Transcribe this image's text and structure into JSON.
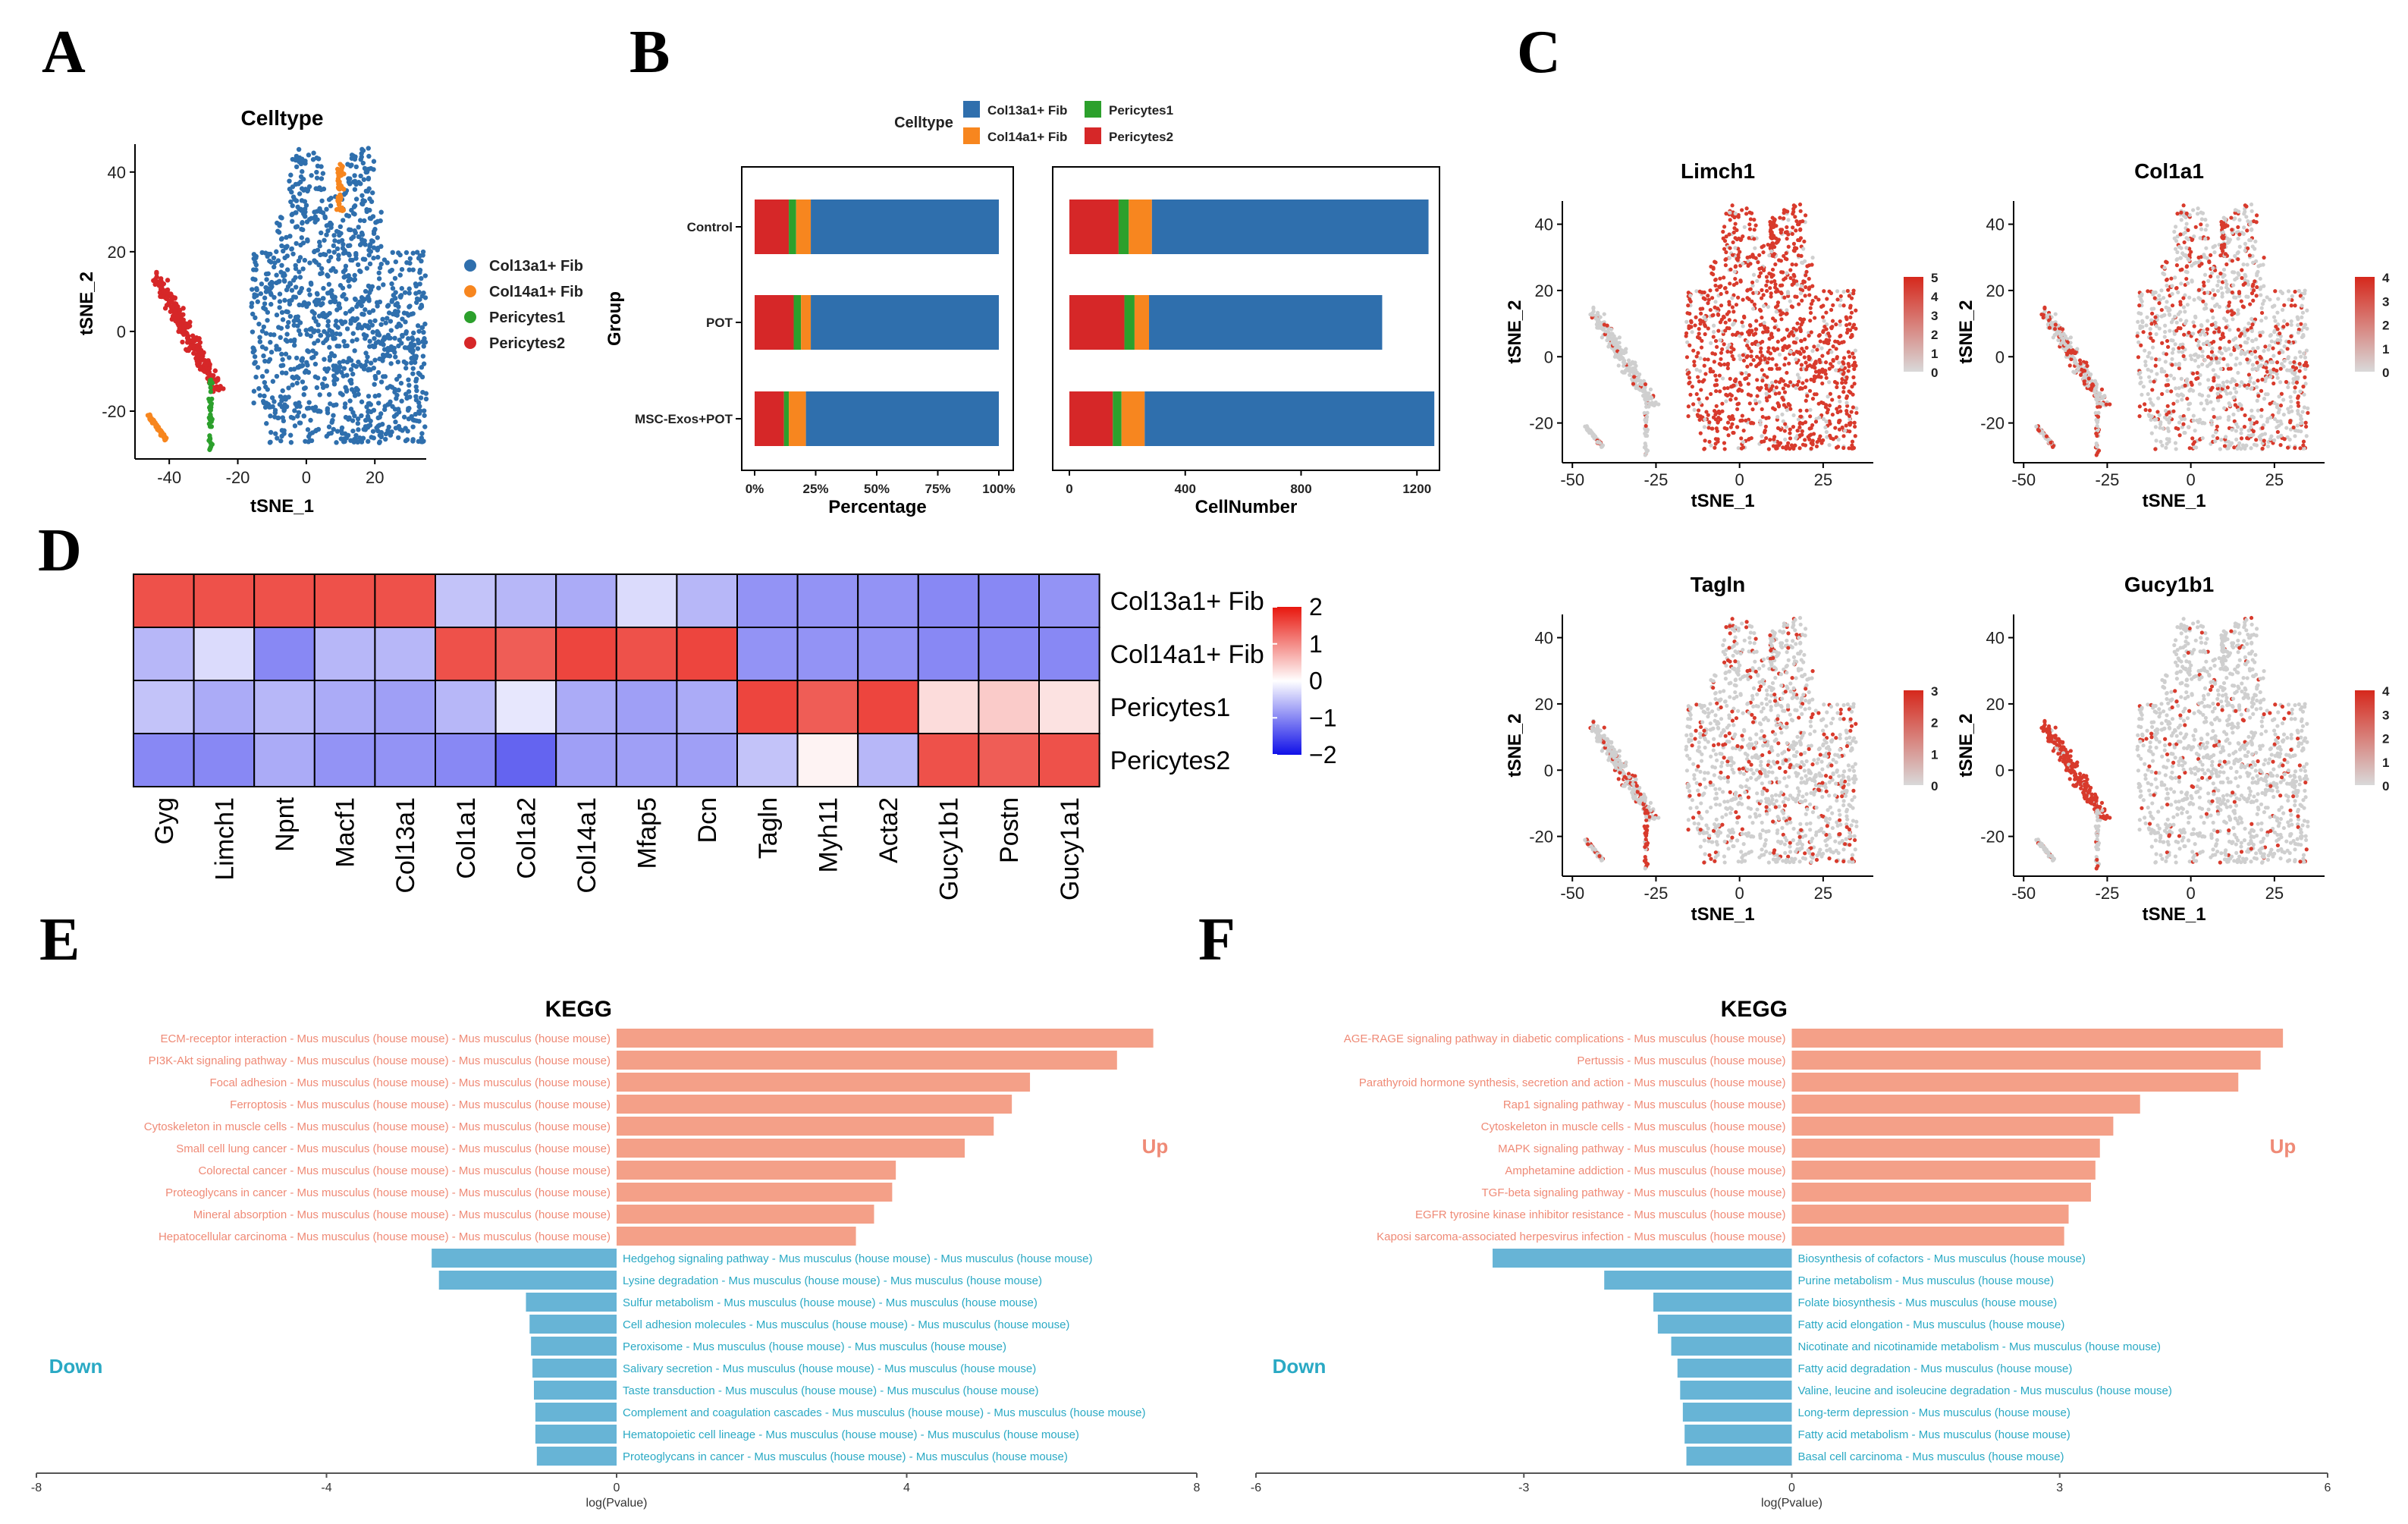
{
  "panel_letters": [
    "A",
    "B",
    "C",
    "D",
    "E",
    "F"
  ],
  "colors": {
    "col13a1": "#2f6fad",
    "col14a1": "#f7861f",
    "peri1": "#2ca02c",
    "peri2": "#d62728",
    "up_bar": "#f4a088",
    "down_bar": "#67b4d6",
    "up_text": "#ef8a76",
    "down_text": "#2aa9c4"
  },
  "chart_data": [
    {
      "id": "A",
      "type": "scatter",
      "title": "Celltype",
      "xlabel": "tSNE_1",
      "ylabel": "tSNE_2",
      "xlim": [
        -50,
        35
      ],
      "ylim": [
        -32,
        47
      ],
      "xticks": [
        -40,
        -20,
        0,
        20
      ],
      "yticks": [
        -20,
        0,
        20,
        40
      ],
      "legend": [
        {
          "name": "Col13a1+ Fib",
          "color": "#2f6fad"
        },
        {
          "name": "Col14a1+ Fib",
          "color": "#f7861f"
        },
        {
          "name": "Pericytes1",
          "color": "#2ca02c"
        },
        {
          "name": "Pericytes2",
          "color": "#d62728"
        }
      ]
    },
    {
      "id": "B1",
      "type": "bar",
      "orientation": "horizontal",
      "stacked": true,
      "legend_title": "Celltype",
      "legend": [
        "Col13a1+ Fib",
        "Col14a1+ Fib",
        "Pericytes1",
        "Pericytes2"
      ],
      "ylabel": "Group",
      "xlabel": "Percentage",
      "categories": [
        "Control",
        "POT",
        "MSC-Exos+POT"
      ],
      "xlim": [
        0,
        100
      ],
      "xticks": [
        "0%",
        "25%",
        "50%",
        "75%",
        "100%"
      ],
      "series": [
        {
          "name": "Pericytes2",
          "values": [
            14,
            16,
            12
          ]
        },
        {
          "name": "Pericytes1",
          "values": [
            3,
            3,
            2
          ]
        },
        {
          "name": "Col14a1+ Fib",
          "values": [
            6,
            4,
            7
          ]
        },
        {
          "name": "Col13a1+ Fib",
          "values": [
            77,
            77,
            79
          ]
        }
      ]
    },
    {
      "id": "B2",
      "type": "bar",
      "orientation": "horizontal",
      "stacked": true,
      "xlabel": "CellNumber",
      "categories": [
        "Control",
        "POT",
        "MSC-Exos+POT"
      ],
      "xlim": [
        0,
        1270
      ],
      "xticks": [
        0,
        400,
        800,
        1200
      ],
      "series": [
        {
          "name": "Pericytes2",
          "values": [
            170,
            190,
            150
          ]
        },
        {
          "name": "Pericytes1",
          "values": [
            35,
            35,
            30
          ]
        },
        {
          "name": "Col14a1+ Fib",
          "values": [
            80,
            50,
            80
          ]
        },
        {
          "name": "Col13a1+ Fib",
          "values": [
            955,
            805,
            1000
          ]
        }
      ]
    },
    {
      "id": "C1",
      "type": "scatter",
      "title": "Limch1",
      "xlabel": "tSNE_1",
      "ylabel": "tSNE_2",
      "xticks": [
        -50,
        -25,
        0,
        25
      ],
      "yticks": [
        -20,
        0,
        20,
        40
      ],
      "scale_ticks": [
        "5",
        "4",
        "3",
        "2",
        "1",
        "0"
      ],
      "scale_max": 5
    },
    {
      "id": "C2",
      "type": "scatter",
      "title": "Col1a1",
      "xlabel": "tSNE_1",
      "ylabel": "tSNE_2",
      "xticks": [
        -50,
        -25,
        0,
        25
      ],
      "yticks": [
        -20,
        0,
        20,
        40
      ],
      "scale_ticks": [
        "4",
        "3",
        "2",
        "1",
        "0"
      ],
      "scale_max": 4
    },
    {
      "id": "C3",
      "type": "scatter",
      "title": "Tagln",
      "xlabel": "tSNE_1",
      "ylabel": "tSNE_2",
      "xticks": [
        -50,
        -25,
        0,
        25
      ],
      "yticks": [
        -20,
        0,
        20,
        40
      ],
      "scale_ticks": [
        "3",
        "2",
        "1",
        "0"
      ],
      "scale_max": 3
    },
    {
      "id": "C4",
      "type": "scatter",
      "title": "Gucy1b1",
      "xlabel": "tSNE_1",
      "ylabel": "tSNE_2",
      "xticks": [
        -50,
        -25,
        0,
        25
      ],
      "yticks": [
        -20,
        0,
        20,
        40
      ],
      "scale_ticks": [
        "4",
        "3",
        "2",
        "1",
        "0"
      ],
      "scale_max": 4
    },
    {
      "id": "D",
      "type": "heatmap",
      "rows": [
        "Col13a1+ Fib",
        "Col14a1+ Fib",
        "Pericytes1",
        "Pericytes2"
      ],
      "columns": [
        "Gyg",
        "Limch1",
        "Npnt",
        "Macf1",
        "Col13a1",
        "Col1a1",
        "Col1a2",
        "Col14a1",
        "Mfap5",
        "Dcn",
        "Tagln",
        "Myh11",
        "Acta2",
        "Gucy1b1",
        "Postn",
        "Gucy1a1"
      ],
      "values": [
        [
          1.5,
          1.5,
          1.5,
          1.5,
          1.5,
          -0.5,
          -0.6,
          -0.7,
          -0.3,
          -0.6,
          -0.9,
          -0.9,
          -0.9,
          -1.0,
          -1.0,
          -0.9
        ],
        [
          -0.6,
          -0.3,
          -1.0,
          -0.6,
          -0.6,
          1.5,
          1.4,
          1.6,
          1.5,
          1.6,
          -0.9,
          -0.9,
          -0.9,
          -1.0,
          -1.0,
          -1.0
        ],
        [
          -0.5,
          -0.7,
          -0.6,
          -0.7,
          -0.8,
          -0.6,
          -0.2,
          -0.7,
          -0.8,
          -0.7,
          1.6,
          1.4,
          1.6,
          0.3,
          0.45,
          0.25
        ],
        [
          -1.0,
          -1.0,
          -0.7,
          -0.9,
          -0.9,
          -1.0,
          -1.3,
          -0.8,
          -0.8,
          -0.8,
          -0.5,
          0.1,
          -0.6,
          1.5,
          1.4,
          1.5
        ]
      ],
      "scale_ticks": [
        "2",
        "1",
        "0",
        "−1",
        "−2"
      ],
      "vmin": -2,
      "vmax": 2
    },
    {
      "id": "E",
      "type": "bar",
      "orientation": "horizontal",
      "title": "KEGG",
      "xlabel": "log(Pvalue)",
      "xlim": [
        -8,
        8
      ],
      "xticks": [
        -8,
        -4,
        0,
        4,
        8
      ],
      "up_label": "Up",
      "down_label": "Down",
      "up": [
        {
          "term": "ECM-receptor interaction - Mus musculus (house mouse) - Mus musculus (house mouse)",
          "value": 7.4
        },
        {
          "term": "PI3K-Akt signaling pathway - Mus musculus (house mouse) - Mus musculus (house mouse)",
          "value": 6.9
        },
        {
          "term": "Focal adhesion - Mus musculus (house mouse) - Mus musculus (house mouse)",
          "value": 5.7
        },
        {
          "term": "Ferroptosis - Mus musculus (house mouse) - Mus musculus (house mouse)",
          "value": 5.45
        },
        {
          "term": "Cytoskeleton in muscle cells - Mus musculus (house mouse) - Mus musculus (house mouse)",
          "value": 5.2
        },
        {
          "term": "Small cell lung cancer - Mus musculus (house mouse) - Mus musculus (house mouse)",
          "value": 4.8
        },
        {
          "term": "Colorectal cancer - Mus musculus (house mouse) - Mus musculus (house mouse)",
          "value": 3.85
        },
        {
          "term": "Proteoglycans in cancer - Mus musculus (house mouse) - Mus musculus (house mouse)",
          "value": 3.8
        },
        {
          "term": "Mineral absorption - Mus musculus (house mouse) - Mus musculus (house mouse)",
          "value": 3.55
        },
        {
          "term": "Hepatocellular carcinoma - Mus musculus (house mouse) - Mus musculus (house mouse)",
          "value": 3.3
        }
      ],
      "down": [
        {
          "term": "Hedgehog signaling pathway - Mus musculus (house mouse) - Mus musculus (house mouse)",
          "value": -2.55
        },
        {
          "term": "Lysine degradation - Mus musculus (house mouse) - Mus musculus (house mouse)",
          "value": -2.45
        },
        {
          "term": "Sulfur metabolism - Mus musculus (house mouse) - Mus musculus (house mouse)",
          "value": -1.25
        },
        {
          "term": "Cell adhesion molecules - Mus musculus (house mouse) - Mus musculus (house mouse)",
          "value": -1.2
        },
        {
          "term": "Peroxisome - Mus musculus (house mouse) - Mus musculus (house mouse)",
          "value": -1.18
        },
        {
          "term": "Salivary secretion - Mus musculus (house mouse) - Mus musculus (house mouse)",
          "value": -1.16
        },
        {
          "term": "Taste transduction - Mus musculus (house mouse) - Mus musculus (house mouse)",
          "value": -1.14
        },
        {
          "term": "Complement and coagulation cascades - Mus musculus (house mouse) - Mus musculus (house mouse)",
          "value": -1.12
        },
        {
          "term": "Hematopoietic cell lineage - Mus musculus (house mouse) - Mus musculus (house mouse)",
          "value": -1.12
        },
        {
          "term": "Proteoglycans in cancer - Mus musculus (house mouse) - Mus musculus (house mouse)",
          "value": -1.1
        }
      ]
    },
    {
      "id": "F",
      "type": "bar",
      "orientation": "horizontal",
      "title": "KEGG",
      "xlabel": "log(Pvalue)",
      "xlim": [
        -6,
        6
      ],
      "xticks": [
        -6,
        -3,
        0,
        3,
        6
      ],
      "up_label": "Up",
      "down_label": "Down",
      "up": [
        {
          "term": "AGE-RAGE signaling pathway in diabetic complications - Mus musculus (house mouse)",
          "value": 5.5
        },
        {
          "term": "Pertussis - Mus musculus (house mouse)",
          "value": 5.25
        },
        {
          "term": "Parathyroid hormone synthesis, secretion and action - Mus musculus (house mouse)",
          "value": 5.0
        },
        {
          "term": "Rap1 signaling pathway - Mus musculus (house mouse)",
          "value": 3.9
        },
        {
          "term": "Cytoskeleton in muscle cells - Mus musculus (house mouse)",
          "value": 3.6
        },
        {
          "term": "MAPK signaling pathway - Mus musculus (house mouse)",
          "value": 3.45
        },
        {
          "term": "Amphetamine addiction - Mus musculus (house mouse)",
          "value": 3.4
        },
        {
          "term": "TGF-beta signaling pathway - Mus musculus (house mouse)",
          "value": 3.35
        },
        {
          "term": "EGFR tyrosine kinase inhibitor resistance - Mus musculus (house mouse)",
          "value": 3.1
        },
        {
          "term": "Kaposi sarcoma-associated herpesvirus infection - Mus musculus (house mouse)",
          "value": 3.05
        }
      ],
      "down": [
        {
          "term": "Biosynthesis of cofactors - Mus musculus (house mouse)",
          "value": -3.35
        },
        {
          "term": "Purine metabolism - Mus musculus (house mouse)",
          "value": -2.1
        },
        {
          "term": "Folate biosynthesis - Mus musculus (house mouse)",
          "value": -1.55
        },
        {
          "term": "Fatty acid elongation - Mus musculus (house mouse)",
          "value": -1.5
        },
        {
          "term": "Nicotinate and nicotinamide metabolism - Mus musculus (house mouse)",
          "value": -1.35
        },
        {
          "term": "Fatty acid degradation - Mus musculus (house mouse)",
          "value": -1.28
        },
        {
          "term": "Valine, leucine and isoleucine degradation - Mus musculus (house mouse)",
          "value": -1.25
        },
        {
          "term": "Long-term depression - Mus musculus (house mouse)",
          "value": -1.22
        },
        {
          "term": "Fatty acid metabolism - Mus musculus (house mouse)",
          "value": -1.2
        },
        {
          "term": "Basal cell carcinoma - Mus musculus (house mouse)",
          "value": -1.18
        }
      ]
    }
  ]
}
